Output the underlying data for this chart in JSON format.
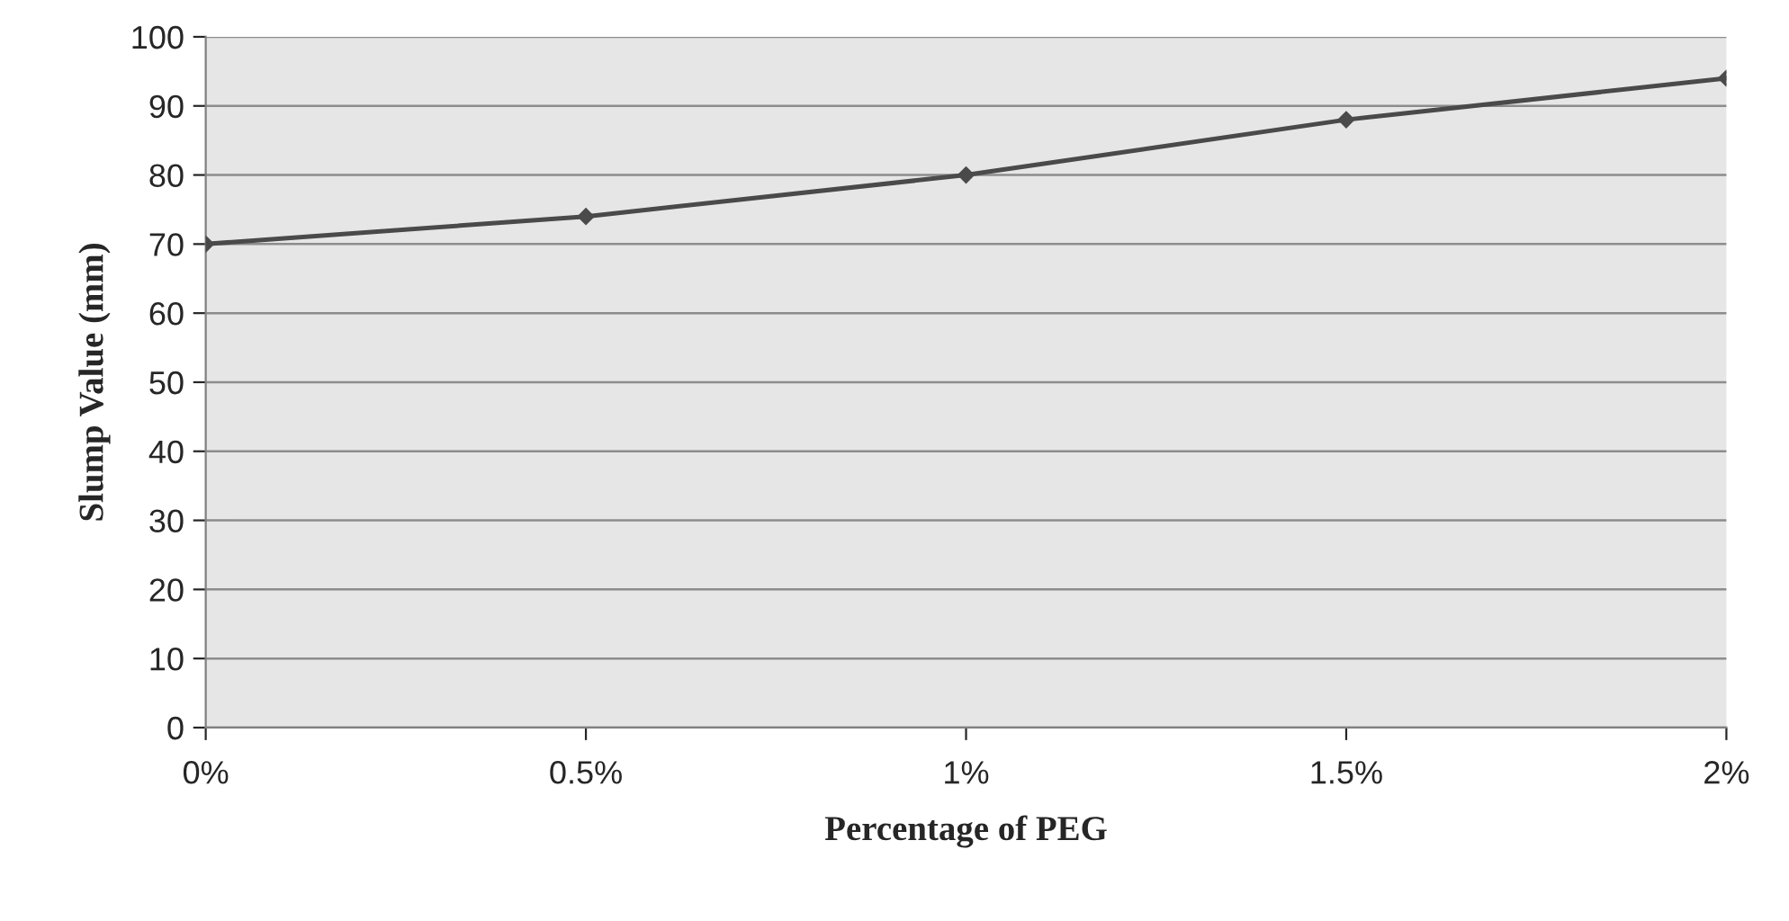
{
  "chart_data": {
    "type": "line",
    "xlabel": "Percentage of PEG",
    "ylabel": "Slump Value (mm)",
    "categories": [
      "0%",
      "0.5%",
      "1%",
      "1.5%",
      "2%"
    ],
    "series": [
      {
        "color": "#4a4a4a",
        "values": [
          70,
          74,
          80,
          88,
          94
        ]
      }
    ],
    "ylim": [
      0,
      100
    ],
    "yticks": [
      0,
      10,
      20,
      30,
      40,
      50,
      60,
      70,
      80,
      90,
      100
    ],
    "grid": "y",
    "marker": "diamond",
    "line_style": "solid"
  }
}
